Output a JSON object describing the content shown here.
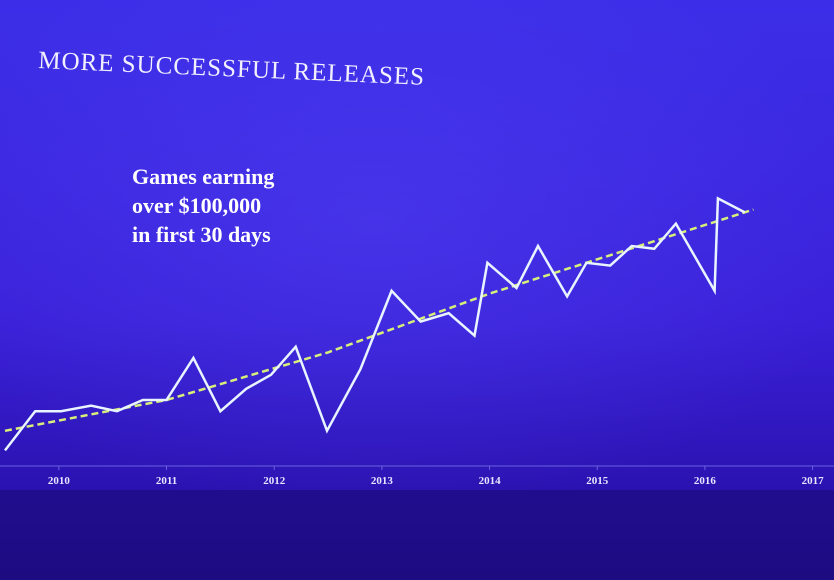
{
  "chart_data": {
    "type": "line",
    "title": "MORE SUCCESSFUL RELEASES",
    "annotation": [
      "Games earning",
      "over $100,000",
      "in first 30 days"
    ],
    "x": [
      2009.5,
      2009.78,
      2010.02,
      2010.3,
      2010.54,
      2010.78,
      2011.0,
      2011.25,
      2011.5,
      2011.74,
      2011.97,
      2012.2,
      2012.49,
      2012.8,
      2013.09,
      2013.36,
      2013.62,
      2013.86,
      2013.98,
      2014.25,
      2014.45,
      2014.72,
      2014.9,
      2015.12,
      2015.32,
      2015.53,
      2015.73,
      2016.09,
      2016.12,
      2016.37
    ],
    "series": [
      {
        "color": "#e8f4ff",
        "values": [
          7,
          21,
          21,
          23,
          21,
          25,
          25,
          40,
          21,
          29,
          34,
          44,
          14,
          36,
          64,
          53,
          56,
          48,
          74,
          65,
          80,
          62,
          74,
          73,
          80,
          79,
          88,
          64,
          97,
          92
        ]
      }
    ],
    "trend": {
      "color": "#d8f07a",
      "x": [
        2009.5,
        2011.0,
        2012.5,
        2014.0,
        2016.45
      ],
      "values": [
        14,
        25,
        42,
        63,
        93
      ]
    },
    "xlim": [
      2009.5,
      2017.05
    ],
    "ylim": [
      0,
      100
    ],
    "xticks": [
      2010,
      2011,
      2012,
      2013,
      2014,
      2015,
      2016,
      2017
    ]
  }
}
